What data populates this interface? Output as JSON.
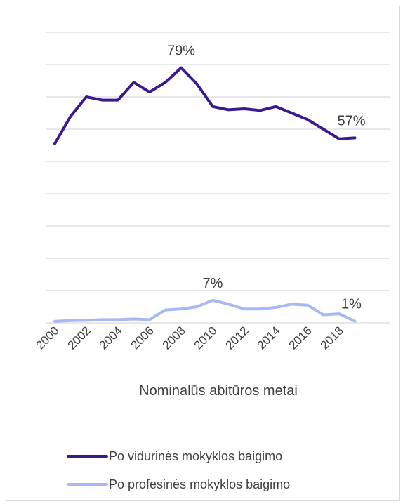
{
  "chart_data": {
    "type": "line",
    "title": "",
    "xlabel": "Nominalūs abitūros metai",
    "ylabel": "",
    "ylim": [
      0,
      90
    ],
    "y_gridlines": [
      0,
      10,
      20,
      30,
      40,
      50,
      60,
      70,
      80,
      90
    ],
    "grid": true,
    "x": [
      2000,
      2001,
      2002,
      2003,
      2004,
      2005,
      2006,
      2007,
      2008,
      2009,
      2010,
      2011,
      2012,
      2013,
      2014,
      2015,
      2016,
      2017,
      2018,
      2019
    ],
    "x_tick_labels": [
      "2000",
      "2002",
      "2004",
      "2006",
      "2008",
      "2010",
      "2012",
      "2014",
      "2016",
      "2018"
    ],
    "legend_position": "bottom",
    "series": [
      {
        "name": "Po vidurinės mokyklos baigimo",
        "color": "#3b1a8f",
        "values": [
          55.5,
          64,
          70,
          69,
          69,
          74.5,
          71.5,
          74.5,
          79,
          74,
          67,
          66,
          66.3,
          65.8,
          67,
          65,
          63,
          60,
          57,
          57.3
        ]
      },
      {
        "name": "Po profesinės mokyklos baigimo",
        "color": "#a7b8f2",
        "values": [
          0.5,
          0.7,
          0.8,
          1.0,
          1.0,
          1.2,
          1.0,
          4.0,
          4.3,
          5.0,
          7.0,
          5.8,
          4.3,
          4.3,
          4.8,
          5.8,
          5.5,
          2.5,
          2.8,
          0.5
        ]
      }
    ],
    "data_labels": [
      {
        "series": 0,
        "index": 8,
        "text": "79%"
      },
      {
        "series": 0,
        "index": 19,
        "text": "57%"
      },
      {
        "series": 1,
        "index": 10,
        "text": "7%"
      },
      {
        "series": 1,
        "index": 19,
        "text": "1%"
      }
    ]
  }
}
